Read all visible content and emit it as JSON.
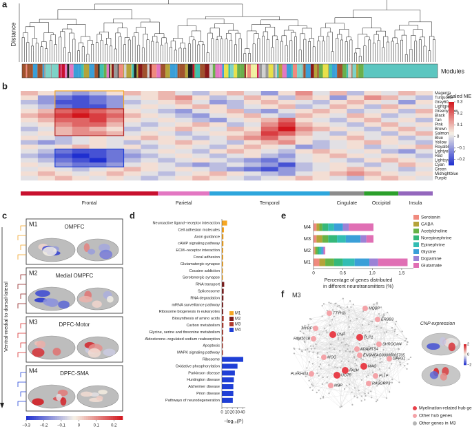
{
  "panel_labels": [
    "a",
    "b",
    "c",
    "d",
    "e",
    "f"
  ],
  "chart_data": [
    {
      "type": "dendrogram",
      "ylabel": "Distance",
      "track_label": "Modules"
    },
    {
      "type": "heatmap",
      "rows": [
        "Magenta",
        "Turquoise",
        "Grey60",
        "Lightgreen",
        "Greenyellow",
        "Black",
        "Tan",
        "Pink",
        "Brown",
        "Salmon",
        "Blue",
        "Yellow",
        "Royalblue",
        "Lightyellow",
        "Red",
        "Lightcyan",
        "Cyan",
        "Green",
        "Midnightblue",
        "Purple"
      ],
      "categories": [
        null,
        null,
        null,
        null,
        null,
        null,
        null,
        null,
        null,
        null,
        null,
        null,
        null,
        null,
        null,
        null,
        null,
        null,
        null,
        null,
        null,
        null,
        null,
        null
      ],
      "values": [
        [
          0.1,
          0.05,
          -0.05,
          -0.1,
          -0.05,
          0.05,
          0.1,
          0.05,
          0.1,
          0,
          -0.05,
          0.05,
          0.1,
          0,
          -0.1,
          0.05,
          0.15,
          0,
          0.1,
          -0.05,
          0.05,
          0,
          0.1,
          0.05
        ],
        [
          0.05,
          -0.1,
          -0.15,
          -0.2,
          -0.15,
          -0.1,
          0,
          0.05,
          0.1,
          0.15,
          0.05,
          -0.05,
          0,
          0.1,
          0.05,
          -0.05,
          0.1,
          0.05,
          -0.1,
          0.05,
          0.15,
          0.1,
          0,
          -0.05
        ],
        [
          -0.05,
          -0.1,
          -0.2,
          -0.2,
          -0.15,
          -0.1,
          -0.05,
          0,
          0.05,
          0.1,
          0,
          -0.1,
          -0.05,
          0.05,
          0.1,
          0.05,
          0,
          -0.05,
          0.05,
          0.1,
          0.05,
          0,
          -0.1,
          0.05
        ],
        [
          0,
          -0.05,
          -0.15,
          -0.2,
          -0.2,
          -0.1,
          0,
          0.05,
          0,
          0.05,
          0.1,
          0.05,
          -0.05,
          0,
          0.05,
          0.1,
          -0.05,
          0,
          0.1,
          0.05,
          -0.05,
          0.1,
          0.05,
          0
        ],
        [
          0.05,
          0.1,
          0.2,
          0.25,
          0.2,
          0.15,
          0.05,
          0,
          -0.05,
          -0.1,
          0,
          0.05,
          0.1,
          -0.05,
          -0.1,
          0,
          0.05,
          0.1,
          0.05,
          -0.05,
          0,
          0.05,
          -0.05,
          0.1
        ],
        [
          0.1,
          0.15,
          0.25,
          0.3,
          0.25,
          0.2,
          0.1,
          0.05,
          0,
          -0.05,
          -0.1,
          0,
          0.05,
          0.1,
          0,
          -0.05,
          0.1,
          0.05,
          0,
          0.1,
          0.05,
          -0.05,
          0,
          0.05
        ],
        [
          0.05,
          0.1,
          0.2,
          0.2,
          0.25,
          0.15,
          0.05,
          0,
          0.05,
          0,
          -0.05,
          -0.1,
          0,
          0.05,
          0.1,
          0.2,
          0.05,
          0,
          -0.05,
          0.05,
          0.1,
          0,
          0.05,
          -0.05
        ],
        [
          0,
          0.05,
          0.15,
          0.2,
          0.2,
          0.1,
          0,
          -0.05,
          0,
          0.05,
          0.1,
          0.05,
          -0.05,
          0,
          0.15,
          0.25,
          0.1,
          0.05,
          0,
          -0.05,
          0.05,
          0.1,
          0,
          0.05
        ],
        [
          -0.05,
          0,
          0.1,
          0.15,
          0.1,
          0.05,
          -0.05,
          0,
          0.05,
          0.1,
          0.05,
          0,
          0.1,
          0.05,
          0.2,
          0.3,
          0.15,
          0.1,
          0.05,
          0,
          -0.05,
          0.05,
          0.1,
          0
        ],
        [
          0,
          0.05,
          0.1,
          0.15,
          0.15,
          0.1,
          0,
          0.05,
          0,
          -0.05,
          0,
          0.05,
          0.05,
          0.1,
          0.25,
          0.2,
          0.1,
          0,
          -0.05,
          0.05,
          0,
          -0.05,
          0.05,
          0.1
        ],
        [
          0.05,
          0,
          -0.05,
          0,
          0.05,
          0,
          0.05,
          0.1,
          0.05,
          0,
          -0.05,
          0,
          0.1,
          0.15,
          0.2,
          0.1,
          0.05,
          0,
          0.05,
          0.1,
          0,
          0.05,
          -0.05,
          0
        ],
        [
          -0.05,
          -0.1,
          -0.05,
          0,
          0.05,
          0,
          -0.05,
          0,
          0.05,
          0.1,
          0.05,
          0,
          -0.05,
          0.05,
          0.1,
          0.15,
          0.05,
          -0.05,
          0,
          0.05,
          0.1,
          0.05,
          0,
          -0.05
        ],
        [
          0.05,
          0,
          0.05,
          0.1,
          0.05,
          0,
          0.05,
          -0.05,
          0,
          0.05,
          0,
          -0.05,
          0.05,
          0.1,
          0.05,
          0,
          -0.1,
          -0.05,
          0,
          0.05,
          -0.05,
          0,
          0.05,
          0.1
        ],
        [
          0,
          -0.05,
          -0.15,
          -0.2,
          -0.2,
          -0.15,
          -0.05,
          0,
          0.05,
          0,
          -0.05,
          0.05,
          0.1,
          0.05,
          0,
          -0.05,
          0.05,
          0.1,
          0.05,
          0,
          0.05,
          -0.05,
          -0.1,
          0
        ],
        [
          -0.05,
          -0.1,
          -0.2,
          -0.25,
          -0.2,
          -0.15,
          -0.1,
          -0.05,
          0,
          0.05,
          0,
          -0.05,
          0,
          0.05,
          -0.05,
          -0.1,
          0,
          0.05,
          0.1,
          0.05,
          0,
          0.05,
          0,
          -0.05
        ],
        [
          0,
          -0.05,
          -0.15,
          -0.2,
          -0.25,
          -0.15,
          -0.05,
          0,
          -0.05,
          0,
          0.05,
          0,
          -0.05,
          -0.1,
          -0.15,
          -0.05,
          0,
          0.05,
          0,
          -0.05,
          0.05,
          0.1,
          0.05,
          0
        ],
        [
          0.05,
          0,
          -0.1,
          -0.15,
          -0.15,
          -0.1,
          0,
          0.05,
          0,
          -0.05,
          -0.1,
          -0.05,
          0,
          -0.05,
          -0.1,
          -0.2,
          -0.05,
          0,
          0.05,
          0,
          -0.05,
          0,
          0.1,
          0.05
        ],
        [
          0,
          0.05,
          0,
          -0.05,
          0,
          0.05,
          0.1,
          0.05,
          0,
          0.05,
          0,
          -0.05,
          -0.1,
          -0.15,
          -0.2,
          -0.1,
          -0.05,
          0,
          0.05,
          0.1,
          0.05,
          0,
          -0.05,
          0
        ],
        [
          0.05,
          0.1,
          0.05,
          0,
          0.05,
          0.1,
          0.05,
          0,
          -0.05,
          0,
          0.05,
          0.1,
          0.05,
          0,
          -0.05,
          -0.1,
          0,
          0.05,
          0.1,
          0.15,
          0.1,
          0.05,
          0,
          0.05
        ],
        [
          0,
          0.05,
          0.1,
          0.05,
          0,
          0.05,
          0,
          -0.05,
          0,
          0.05,
          0.1,
          0.05,
          0,
          -0.05,
          0,
          0.05,
          0.1,
          0.05,
          0,
          -0.05,
          0.05,
          0.1,
          0.05,
          0
        ]
      ],
      "colormap": [
        "#1f2fd0",
        "#f6f2e6",
        "#d2151c"
      ],
      "clim": [
        -0.25,
        0.3
      ],
      "colorbar": {
        "title": "Scaled ME",
        "ticks": [
          {
            "value": -0.2,
            "label": "−0.2"
          },
          {
            "value": -0.1,
            "label": "−0.1"
          },
          0,
          0.1,
          0.2,
          0.3
        ]
      },
      "column_groups": [
        {
          "name": "Frontal",
          "color": "#c8102e",
          "columns": 8
        },
        {
          "name": "Parietal",
          "color": "#e377c2",
          "columns": 3
        },
        {
          "name": "Temporal",
          "color": "#2ea6dc",
          "columns": 7
        },
        {
          "name": "Cingulate",
          "color": "#8c8c8c",
          "columns": 2
        },
        {
          "name": "Occipital",
          "color": "#2ca02c",
          "columns": 2
        },
        {
          "name": "Insula",
          "color": "#9467bd",
          "columns": 2
        }
      ]
    },
    {
      "type": "brain_modules",
      "ylabel": "Ventral-medial to dorsal-lateral",
      "modules": [
        {
          "name": "M1",
          "title": "OMPFC",
          "color": "#f0a020"
        },
        {
          "name": "M2",
          "title": "Medial OMPFC",
          "color": "#8b1a1a"
        },
        {
          "name": "M3",
          "title": "DPFC-Motor",
          "color": "#d62728"
        },
        {
          "name": "M4",
          "title": "DPFC-SMA",
          "color": "#1f3fd6"
        }
      ],
      "colormap": [
        "#1f2fd0",
        "#f6f2e6",
        "#d2151c"
      ],
      "clim": [
        -0.3,
        0.25
      ],
      "colorbar_ticks": [
        {
          "value": -0.3,
          "label": "−0.3"
        },
        {
          "value": -0.2,
          "label": "−0.2"
        },
        {
          "value": -0.1,
          "label": "−0.1"
        },
        0,
        0.1,
        0.2
      ]
    },
    {
      "type": "hbar",
      "categories": [
        "Neuroactive ligand−receptor interaction",
        "Cell adhesion molecules",
        "Axon guidance",
        "cAMP signaling pathway",
        "ECM−receptor interaction",
        "Focal adhesion",
        "Glutamatergic synapse",
        "Cocaine addiction",
        "Serotonergic synapse",
        "RNA transport",
        "Spliceosome",
        "RNA degradation",
        "mRNA surveillance pathway",
        "Ribosome biogenesis in eukaryotes",
        "Biosynthesis of amino acids",
        "Carbon metabolism",
        "Glycine, serine and threonine metabolism",
        "Aldosterone−regulated sodium reabsorption",
        "Apoptosis",
        "MAPK signaling pathway",
        "Ribosome",
        "Oxidative phosphorylation",
        "Parkinson disease",
        "Huntington disease",
        "Alzheimer disease",
        "Prion disease",
        "Pathways of neurodegeneration"
      ],
      "series": [
        {
          "name": "M1",
          "color": "#f5a623",
          "values": [
            10,
            4,
            3,
            3,
            2.5,
            2.5,
            2.5,
            2,
            2,
            null,
            null,
            null,
            null,
            null,
            null,
            null,
            null,
            null,
            null,
            null,
            null,
            null,
            null,
            null,
            null,
            null,
            null
          ]
        },
        {
          "name": "M2",
          "color": "#7b1c1c",
          "values": [
            null,
            null,
            null,
            null,
            null,
            null,
            null,
            null,
            null,
            4.5,
            3.5,
            3,
            2.5,
            2.5,
            null,
            null,
            null,
            null,
            null,
            null,
            null,
            null,
            null,
            null,
            null,
            null,
            null
          ]
        },
        {
          "name": "M3",
          "color": "#b03a2e",
          "values": [
            null,
            null,
            null,
            null,
            null,
            null,
            null,
            null,
            null,
            null,
            null,
            null,
            null,
            null,
            3.5,
            3,
            2.5,
            2.5,
            2,
            2,
            null,
            null,
            null,
            null,
            null,
            null,
            null
          ]
        },
        {
          "name": "M4",
          "color": "#1f3fd6",
          "values": [
            null,
            null,
            null,
            null,
            null,
            null,
            null,
            null,
            null,
            null,
            null,
            null,
            null,
            null,
            null,
            null,
            null,
            null,
            null,
            null,
            41,
            30,
            25,
            23,
            22,
            22,
            21
          ]
        }
      ],
      "xlim": [
        0,
        45
      ],
      "xticks": [
        0,
        10,
        20,
        30,
        40
      ],
      "xlabel": "−log₁₀(P)"
    },
    {
      "type": "stacked_hbar",
      "categories": [
        "M4",
        "M3",
        "M2",
        "M1"
      ],
      "series": [
        {
          "name": "Serotonin",
          "color": "#f08a7e",
          "values": [
            0.05,
            0.05,
            0.02,
            0.1
          ]
        },
        {
          "name": "GABA",
          "color": "#b5a33a",
          "values": [
            0.05,
            0.1,
            0.02,
            0.1
          ]
        },
        {
          "name": "Acetylcholine",
          "color": "#67b346",
          "values": [
            0.05,
            0.1,
            0.03,
            0.15
          ]
        },
        {
          "name": "Norepinephrine",
          "color": "#35b87a",
          "values": [
            0.1,
            0.15,
            0.03,
            0.15
          ]
        },
        {
          "name": "Epinephrine",
          "color": "#33bdb3",
          "values": [
            0.1,
            0.15,
            0.03,
            0.2
          ]
        },
        {
          "name": "Glycine",
          "color": "#3a9fd8",
          "values": [
            0.15,
            0.25,
            0.03,
            0.25
          ]
        },
        {
          "name": "Dopamine",
          "color": "#9b82d6",
          "values": [
            0.1,
            0.1,
            0.02,
            0.15
          ]
        },
        {
          "name": "Glutamate",
          "color": "#e06fb4",
          "values": [
            0.42,
            0.12,
            0.02,
            0.5
          ]
        }
      ],
      "xlim": [
        0,
        1.7
      ],
      "xticks": [
        0,
        0.5,
        {
          "value": 1,
          "label": "1.0"
        },
        1.5
      ],
      "xlabel": [
        "Percentage of genes distributed",
        "in different neurotransmitters (%)"
      ]
    },
    {
      "type": "network",
      "title": "M3",
      "myelination_hubs": [
        "CNP",
        "UGT8",
        "FA2H",
        "PLP1",
        "MAG"
      ],
      "other_hubs": [
        "TTYH2",
        "MOBP",
        "MYRF",
        "ERBB3",
        "FAM107B",
        "SHROOM4",
        "ADAMTS4",
        "ENSMFAG00000005705",
        "MOG",
        "GPR37",
        "PLEKHG3",
        "MBP",
        "PLLP",
        "RASGRP3"
      ],
      "legend": [
        {
          "name": "Myelination-related hub genes",
          "color": "#e8404a"
        },
        {
          "name": "Other hub genes",
          "color": "#f4a3a8"
        },
        {
          "name": "Other genes in M3",
          "color": "#b5b5b5"
        }
      ],
      "inset_title": "CNP expression",
      "inset_ticks": [
        2,
        0,
        {
          "value": -2,
          "label": "−2"
        }
      ]
    }
  ]
}
